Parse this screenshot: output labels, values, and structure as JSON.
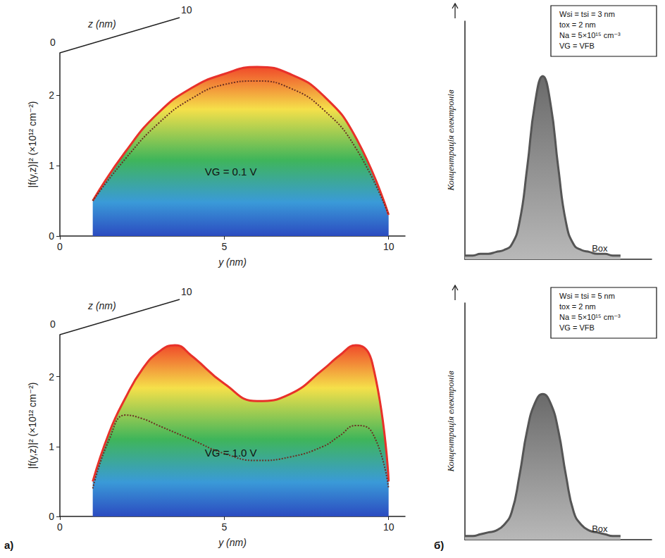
{
  "chart_data": [
    {
      "type": "line",
      "x": [
        1,
        2,
        3,
        4,
        5,
        6,
        7,
        8,
        9,
        10
      ],
      "series": [
        {
          "color": "#e8312a",
          "line_style": "solid",
          "values": [
            0.5,
            1.2,
            1.75,
            2.1,
            2.3,
            2.4,
            2.3,
            2.0,
            1.4,
            0.3
          ]
        },
        {
          "color": "#6b2f22",
          "line_style": "dotted",
          "values": [
            0.5,
            1.1,
            1.6,
            1.95,
            2.15,
            2.2,
            2.1,
            1.8,
            1.25,
            0.3
          ]
        }
      ],
      "xlabel": "y (nm)",
      "ylabel": "|f(y,z)|² (×10¹² cm⁻²)",
      "xlim": [
        0,
        10.5
      ],
      "xticks": [
        0,
        5,
        10
      ],
      "ylim": [
        0,
        2.6
      ],
      "yticks": [
        0,
        1,
        2
      ],
      "zlabel": "z (nm)",
      "zticks": [
        0,
        10
      ],
      "annotations": [
        "VG = 0.1 V"
      ],
      "grid": false
    },
    {
      "type": "line",
      "x": [
        1,
        1.5,
        2,
        2.5,
        3,
        3.5,
        4,
        5,
        6,
        7,
        8,
        8.5,
        9,
        9.5,
        10
      ],
      "series": [
        {
          "color": "#e8312a",
          "line_style": "solid",
          "values": [
            0.5,
            1.2,
            1.7,
            2.1,
            2.35,
            2.45,
            2.3,
            1.9,
            1.65,
            1.75,
            2.1,
            2.3,
            2.45,
            2.2,
            0.5
          ]
        },
        {
          "color": "#6b2f22",
          "line_style": "dotted",
          "values": [
            0.4,
            1.1,
            1.45,
            1.4,
            1.3,
            1.2,
            1.1,
            0.9,
            0.8,
            0.85,
            1.0,
            1.15,
            1.3,
            1.2,
            0.4
          ]
        }
      ],
      "xlabel": "y (nm)",
      "ylabel": "|f(y,z)|² (×10¹² cm⁻²)",
      "xlim": [
        0,
        10.5
      ],
      "xticks": [
        0,
        5,
        10
      ],
      "ylim": [
        0,
        2.6
      ],
      "yticks": [
        0,
        1,
        2
      ],
      "zlabel": "z (nm)",
      "zticks": [
        0,
        10
      ],
      "annotations": [
        "VG = 1.0 V"
      ],
      "panel_label": "а)",
      "grid": false
    },
    {
      "type": "line",
      "x": [
        0,
        1,
        2,
        3,
        4,
        5,
        6,
        7,
        8,
        9,
        10,
        11,
        12,
        13,
        14,
        15,
        16,
        17,
        18,
        19,
        20
      ],
      "series": [
        {
          "color": "#555555",
          "line_style": "solid",
          "values": [
            0.02,
            0.02,
            0.03,
            0.03,
            0.04,
            0.05,
            0.08,
            0.2,
            0.5,
            0.85,
            1.0,
            0.85,
            0.5,
            0.2,
            0.08,
            0.05,
            0.04,
            0.03,
            0.03,
            0.02,
            0.02
          ]
        }
      ],
      "ylabel": "Концентрація електронів",
      "xlim": [
        0,
        24
      ],
      "ylim": [
        0,
        1.3
      ],
      "tick_labels": false,
      "annotations": [
        "Wsi = tsi = 3 nm",
        "tox = 2 nm",
        "Na = 5×10¹⁵ cm⁻³",
        "VG = VFB",
        "Box"
      ],
      "grid": false
    },
    {
      "type": "line",
      "x": [
        0,
        1,
        2,
        3,
        4,
        5,
        6,
        7,
        8,
        9,
        10,
        11,
        12,
        13,
        14,
        15,
        16,
        17,
        18,
        19,
        20
      ],
      "series": [
        {
          "color": "#555555",
          "line_style": "solid",
          "values": [
            0.02,
            0.02,
            0.03,
            0.04,
            0.05,
            0.08,
            0.15,
            0.35,
            0.6,
            0.75,
            0.8,
            0.75,
            0.6,
            0.35,
            0.15,
            0.08,
            0.05,
            0.04,
            0.03,
            0.02,
            0.02
          ]
        }
      ],
      "ylabel": "Концентрація електронів",
      "xlim": [
        0,
        24
      ],
      "ylim": [
        0,
        1.3
      ],
      "tick_labels": false,
      "annotations": [
        "Wsi = tsi = 5 nm",
        "tox = 2 nm",
        "Na = 5×10¹⁵ cm⁻³",
        "VG = VFB",
        "Box"
      ],
      "panel_label": "б)",
      "grid": false
    }
  ]
}
